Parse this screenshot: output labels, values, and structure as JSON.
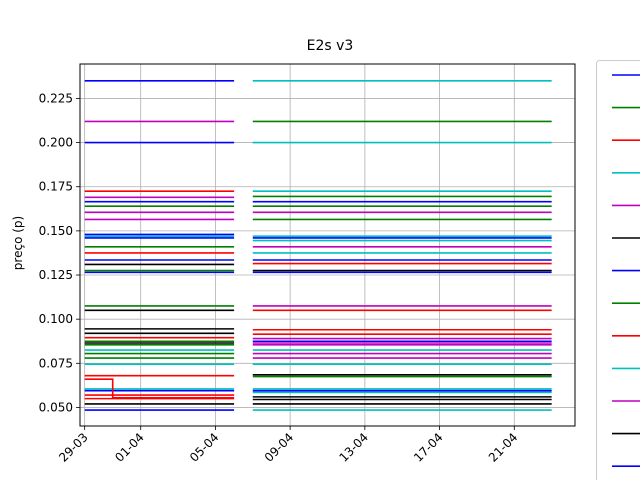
{
  "chart_data": {
    "type": "line",
    "title": "E2s v3",
    "ylabel": "preço (p)",
    "xlabel": "",
    "grid": true,
    "legend_placement": "right, outside plot",
    "xlim": [
      "2024-03-28T18:00",
      "2024-04-24T06:00"
    ],
    "ylim": [
      0.0395,
      0.2445
    ],
    "x_tick_labels": [
      "29-03",
      "01-04",
      "05-04",
      "09-04",
      "13-04",
      "17-04",
      "21-04"
    ],
    "x_tick_dates": [
      "2024-03-29",
      "2024-04-01",
      "2024-04-05",
      "2024-04-09",
      "2024-04-13",
      "2024-04-17",
      "2024-04-21"
    ],
    "y_ticks": [
      0.05,
      0.075,
      0.1,
      0.125,
      0.15,
      0.175,
      0.2,
      0.225
    ],
    "y_tick_labels": [
      "0.050",
      "0.075",
      "0.100",
      "0.125",
      "0.150",
      "0.175",
      "0.200",
      "0.225"
    ],
    "segment_dates": {
      "first": [
        "2024-03-29",
        "2024-04-06"
      ],
      "second": [
        "2024-04-07",
        "2024-04-23"
      ]
    },
    "legend_colors": [
      "#0000ff",
      "#008000",
      "#ff0000",
      "#00bfbf",
      "#bf00bf",
      "#000000",
      "#0000ff",
      "#008000",
      "#ff0000",
      "#00bfbf",
      "#bf00bf",
      "#000000",
      "#0000ff"
    ],
    "series": [
      {
        "color": "#0000ff",
        "first": 0.235,
        "second": null
      },
      {
        "color": "#00bfbf",
        "first": null,
        "second": 0.235
      },
      {
        "color": "#bf00bf",
        "first": 0.212,
        "second": null
      },
      {
        "color": "#008000",
        "first": null,
        "second": 0.212
      },
      {
        "color": "#0000ff",
        "first": 0.2,
        "second": null
      },
      {
        "color": "#00bfbf",
        "first": null,
        "second": 0.2
      },
      {
        "color": "#ff0000",
        "first": 0.1725,
        "second": null
      },
      {
        "color": "#00bfbf",
        "first": null,
        "second": 0.1725
      },
      {
        "color": "#008000",
        "first": null,
        "second": 0.1695
      },
      {
        "color": "#bf00bf",
        "first": 0.169,
        "second": null
      },
      {
        "color": "#0000ff",
        "first": 0.1665,
        "second": 0.1665
      },
      {
        "color": "#008000",
        "first": 0.164,
        "second": 0.164
      },
      {
        "color": "#bf00bf",
        "first": 0.1605,
        "second": 0.1605
      },
      {
        "color": "#008000",
        "first": null,
        "second": 0.1565
      },
      {
        "color": "#bf00bf",
        "first": 0.1565,
        "second": null
      },
      {
        "color": "#0000ff",
        "first": 0.148,
        "second": null
      },
      {
        "color": "#00bfbf",
        "first": 0.147,
        "second": 0.147
      },
      {
        "color": "#0000ff",
        "first": 0.146,
        "second": 0.146
      },
      {
        "color": "#00bfbf",
        "first": null,
        "second": 0.1445
      },
      {
        "color": "#008000",
        "first": 0.141,
        "second": null
      },
      {
        "color": "#bf00bf",
        "first": null,
        "second": 0.141
      },
      {
        "color": "#ff0000",
        "first": 0.1375,
        "second": null
      },
      {
        "color": "#00bfbf",
        "first": null,
        "second": 0.1375
      },
      {
        "color": "#0000ff",
        "first": 0.1335,
        "second": 0.1335
      },
      {
        "color": "#ff0000",
        "first": null,
        "second": 0.1315
      },
      {
        "color": "#000000",
        "first": 0.131,
        "second": null
      },
      {
        "color": "#000000",
        "first": null,
        "second": 0.1275
      },
      {
        "color": "#008000",
        "first": 0.1275,
        "second": null
      },
      {
        "color": "#0000ff",
        "first": 0.1265,
        "second": 0.1265
      },
      {
        "color": "#008000",
        "first": 0.1075,
        "second": null
      },
      {
        "color": "#bf00bf",
        "first": null,
        "second": 0.1075
      },
      {
        "color": "#000000",
        "first": 0.105,
        "second": null
      },
      {
        "color": "#ff0000",
        "first": null,
        "second": 0.105
      },
      {
        "color": "#000000",
        "first": 0.0945,
        "second": null
      },
      {
        "color": "#ff0000",
        "first": null,
        "second": 0.094
      },
      {
        "color": "#000000",
        "first": 0.092,
        "second": null
      },
      {
        "color": "#ff0000",
        "first": null,
        "second": 0.0915
      },
      {
        "color": "#ff0000",
        "first": 0.0895,
        "second": null
      },
      {
        "color": "#bf00bf",
        "first": null,
        "second": 0.089
      },
      {
        "color": "#008000",
        "first": 0.0875,
        "second": null
      },
      {
        "color": "#0000ff",
        "first": null,
        "second": 0.0875
      },
      {
        "color": "#000000",
        "first": 0.0865,
        "second": null
      },
      {
        "color": "#bf00bf",
        "first": null,
        "second": 0.0865
      },
      {
        "color": "#008000",
        "first": 0.0855,
        "second": null
      },
      {
        "color": "#bf00bf",
        "first": null,
        "second": 0.0855
      },
      {
        "color": "#00bfbf",
        "first": 0.0825,
        "second": 0.0825
      },
      {
        "color": "#bf00bf",
        "first": null,
        "second": 0.0805
      },
      {
        "color": "#008000",
        "first": 0.0805,
        "second": null
      },
      {
        "color": "#bf00bf",
        "first": null,
        "second": 0.078
      },
      {
        "color": "#008000",
        "first": 0.078,
        "second": null
      },
      {
        "color": "#00bfbf",
        "first": 0.0745,
        "second": 0.0745
      },
      {
        "color": "#000000",
        "first": null,
        "second": 0.0685
      },
      {
        "color": "#ff0000",
        "first": 0.068,
        "second": null
      },
      {
        "color": "#008000",
        "first": null,
        "second": 0.0675
      },
      {
        "color": "#00bfbf",
        "first": 0.0605,
        "second": 0.0605
      },
      {
        "color": "#0000ff",
        "first": 0.0595,
        "second": 0.0595
      },
      {
        "color": "#00bfbf",
        "first": null,
        "second": 0.0585
      },
      {
        "color": "#ff0000",
        "first": 0.057,
        "second": null
      },
      {
        "color": "#000000",
        "first": null,
        "second": 0.056
      },
      {
        "color": "#ff0000",
        "first": 0.055,
        "second": null
      },
      {
        "color": "#000000",
        "first": null,
        "second": 0.0545
      },
      {
        "color": "#000000",
        "first": 0.052,
        "second": 0.052
      },
      {
        "color": "#0000ff",
        "first": 0.0485,
        "second": null
      },
      {
        "color": "#00bfbf",
        "first": null,
        "second": 0.0485
      }
    ]
  }
}
